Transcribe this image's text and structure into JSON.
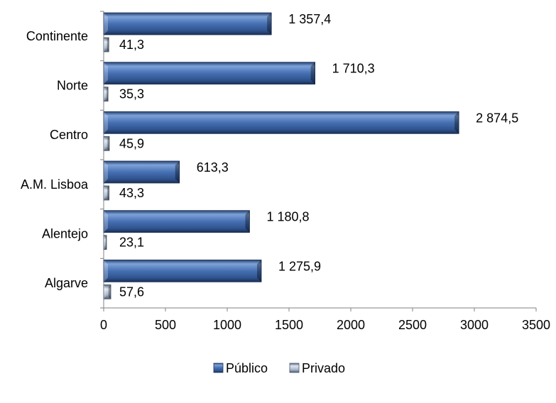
{
  "chart_data": {
    "type": "bar",
    "orientation": "horizontal",
    "categories": [
      "Continente",
      "Norte",
      "Centro",
      "A.M. Lisboa",
      "Alentejo",
      "Algarve"
    ],
    "series": [
      {
        "name": "Público",
        "values": [
          1357.4,
          1710.3,
          2874.5,
          613.3,
          1180.8,
          1275.9
        ],
        "labels": [
          "1 357,4",
          "1 710,3",
          "2 874,5",
          "613,3",
          "1 180,8",
          "1 275,9"
        ],
        "color": "#3b63a5"
      },
      {
        "name": "Privado",
        "values": [
          41.3,
          35.3,
          45.9,
          43.3,
          23.1,
          57.6
        ],
        "labels": [
          "41,3",
          "35,3",
          "45,9",
          "43,3",
          "23,1",
          "57,6"
        ],
        "color": "#a8b8cc"
      }
    ],
    "xlim": [
      0,
      3500
    ],
    "xticks": [
      0,
      500,
      1000,
      1500,
      2000,
      2500,
      3000,
      3500
    ],
    "xtick_labels": [
      "0",
      "500",
      "1000",
      "1500",
      "2000",
      "2500",
      "3000",
      "3500"
    ],
    "grid": false,
    "legend_position": "bottom",
    "title": "",
    "xlabel": "",
    "ylabel": ""
  }
}
